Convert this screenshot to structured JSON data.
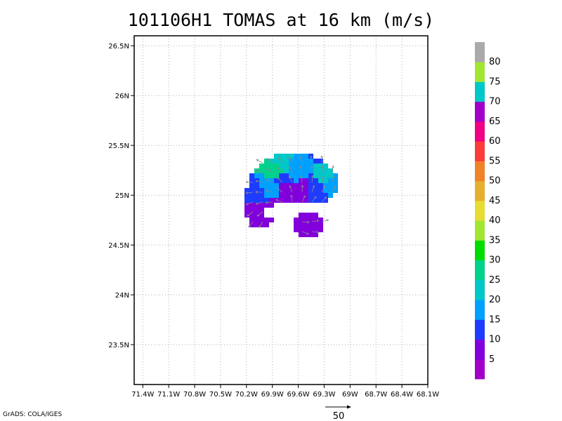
{
  "title": "101106H1 TOMAS at 16 km (m/s)",
  "credit": "GrADS: COLA/IGES",
  "colors": {
    "grid": "#b0b0b0",
    "frame": "#000000",
    "vector": "#8a8a8a"
  },
  "chart_data": {
    "type": "heatmap",
    "title": "101106H1 TOMAS at 16 km (m/s)",
    "xlabel": "",
    "ylabel": "",
    "xlim": [
      -71.5,
      -68.1
    ],
    "ylim": [
      23.1,
      26.6
    ],
    "x_ticks": [
      -71.4,
      -71.1,
      -70.8,
      -70.5,
      -70.2,
      -69.9,
      -69.6,
      -69.3,
      -69.0,
      -68.7,
      -68.4,
      -68.1
    ],
    "x_tick_labels": [
      "71.4W",
      "71.1W",
      "70.8W",
      "70.5W",
      "70.2W",
      "69.9W",
      "69.6W",
      "69.3W",
      "69W",
      "68.7W",
      "68.4W",
      "68.1W"
    ],
    "y_ticks": [
      23.5,
      24.0,
      24.5,
      25.0,
      25.5,
      26.0,
      26.5
    ],
    "y_tick_labels": [
      "23.5N",
      "24N",
      "24.5N",
      "25N",
      "25.5N",
      "26N",
      "26.5N"
    ],
    "grid": true,
    "colorbar": {
      "levels": [
        5,
        10,
        15,
        20,
        25,
        30,
        35,
        40,
        45,
        50,
        55,
        60,
        65,
        70,
        75,
        80
      ],
      "colors": [
        "#a000c8",
        "#8200dc",
        "#1e3cff",
        "#00a0ff",
        "#00c8c8",
        "#00d28c",
        "#00dc00",
        "#a0e632",
        "#e6dc32",
        "#e6af2d",
        "#f08228",
        "#fa3c3c",
        "#f00082",
        "#a000c8",
        "#00c8c8",
        "#a0e632",
        "#aaaaaa"
      ]
    },
    "cells": [
      {
        "lon": -69.75,
        "lat": 25.05,
        "band": 1
      },
      {
        "lon": -69.55,
        "lat": 25.05,
        "band": 1
      },
      {
        "lon": -69.45,
        "lat": 24.7,
        "band": 1
      },
      {
        "lon": -70.1,
        "lat": 24.8,
        "band": 1
      },
      {
        "lon": -69.95,
        "lat": 24.85,
        "band": 1
      },
      {
        "lon": -70.05,
        "lat": 25.0,
        "band": 2
      },
      {
        "lon": -69.75,
        "lat": 25.15,
        "band": 2
      },
      {
        "lon": -69.45,
        "lat": 25.05,
        "band": 2
      },
      {
        "lon": -69.25,
        "lat": 25.45,
        "band": 2
      },
      {
        "lon": -69.95,
        "lat": 25.05,
        "band": 3
      },
      {
        "lon": -69.65,
        "lat": 25.25,
        "band": 3
      },
      {
        "lon": -69.2,
        "lat": 25.15,
        "band": 3
      },
      {
        "lon": -69.8,
        "lat": 25.3,
        "band": 4
      },
      {
        "lon": -69.25,
        "lat": 25.2,
        "band": 4
      },
      {
        "lon": -69.85,
        "lat": 25.25,
        "band": 5
      }
    ],
    "vector_reference": {
      "label": "50",
      "speed": 50
    }
  }
}
